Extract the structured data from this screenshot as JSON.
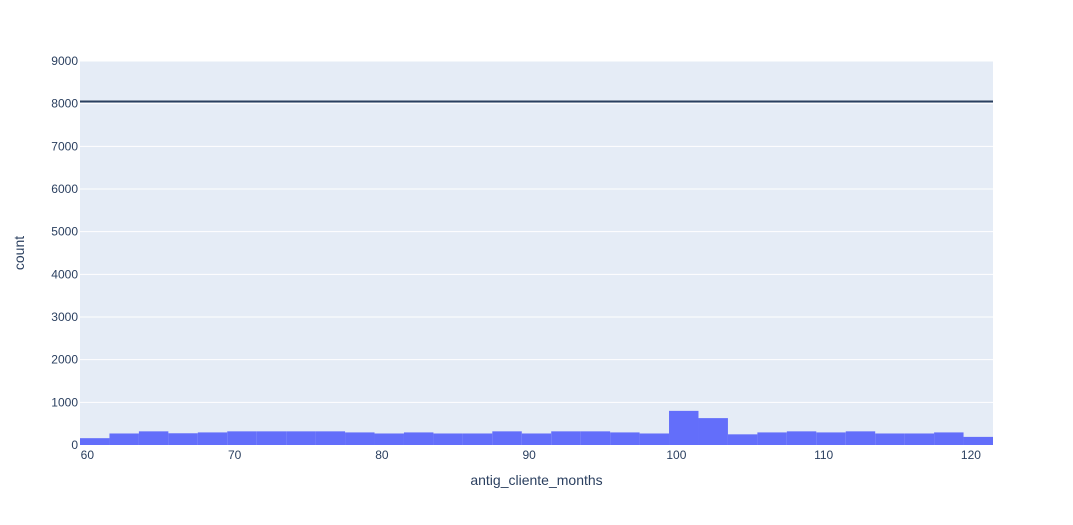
{
  "chart_data": {
    "type": "bar",
    "subtype": "histogram",
    "title": "",
    "xlabel": "antig_cliente_months",
    "ylabel": "count",
    "xlim": [
      59.5,
      121.5
    ],
    "ylim": [
      0,
      9000
    ],
    "x_ticks": [
      60,
      70,
      80,
      90,
      100,
      110,
      120
    ],
    "y_ticks": [
      0,
      1000,
      2000,
      3000,
      4000,
      5000,
      6000,
      7000,
      8000,
      9000
    ],
    "bin_width": 2,
    "bins": [
      {
        "start": 59.5,
        "end": 61.5,
        "count": 160
      },
      {
        "start": 61.5,
        "end": 63.5,
        "count": 270
      },
      {
        "start": 63.5,
        "end": 65.5,
        "count": 320
      },
      {
        "start": 65.5,
        "end": 67.5,
        "count": 275
      },
      {
        "start": 67.5,
        "end": 69.5,
        "count": 295
      },
      {
        "start": 69.5,
        "end": 71.5,
        "count": 320
      },
      {
        "start": 71.5,
        "end": 73.5,
        "count": 320
      },
      {
        "start": 73.5,
        "end": 75.5,
        "count": 320
      },
      {
        "start": 75.5,
        "end": 77.5,
        "count": 320
      },
      {
        "start": 77.5,
        "end": 79.5,
        "count": 295
      },
      {
        "start": 79.5,
        "end": 81.5,
        "count": 270
      },
      {
        "start": 81.5,
        "end": 83.5,
        "count": 295
      },
      {
        "start": 83.5,
        "end": 85.5,
        "count": 270
      },
      {
        "start": 85.5,
        "end": 87.5,
        "count": 270
      },
      {
        "start": 87.5,
        "end": 89.5,
        "count": 320
      },
      {
        "start": 89.5,
        "end": 91.5,
        "count": 270
      },
      {
        "start": 91.5,
        "end": 93.5,
        "count": 320
      },
      {
        "start": 93.5,
        "end": 95.5,
        "count": 320
      },
      {
        "start": 95.5,
        "end": 97.5,
        "count": 295
      },
      {
        "start": 97.5,
        "end": 99.5,
        "count": 270
      },
      {
        "start": 99.5,
        "end": 101.5,
        "count": 800
      },
      {
        "start": 101.5,
        "end": 103.5,
        "count": 630
      },
      {
        "start": 103.5,
        "end": 105.5,
        "count": 250
      },
      {
        "start": 105.5,
        "end": 107.5,
        "count": 295
      },
      {
        "start": 107.5,
        "end": 109.5,
        "count": 320
      },
      {
        "start": 109.5,
        "end": 111.5,
        "count": 295
      },
      {
        "start": 111.5,
        "end": 113.5,
        "count": 320
      },
      {
        "start": 113.5,
        "end": 115.5,
        "count": 270
      },
      {
        "start": 115.5,
        "end": 117.5,
        "count": 270
      },
      {
        "start": 117.5,
        "end": 119.5,
        "count": 295
      },
      {
        "start": 119.5,
        "end": 121.5,
        "count": 190
      }
    ],
    "reference_line": {
      "y": 8050,
      "color": "#2a3f5f"
    },
    "bar_color": "#636efa",
    "plot_background": "#e5ecf6",
    "grid": true,
    "legend": "none"
  }
}
